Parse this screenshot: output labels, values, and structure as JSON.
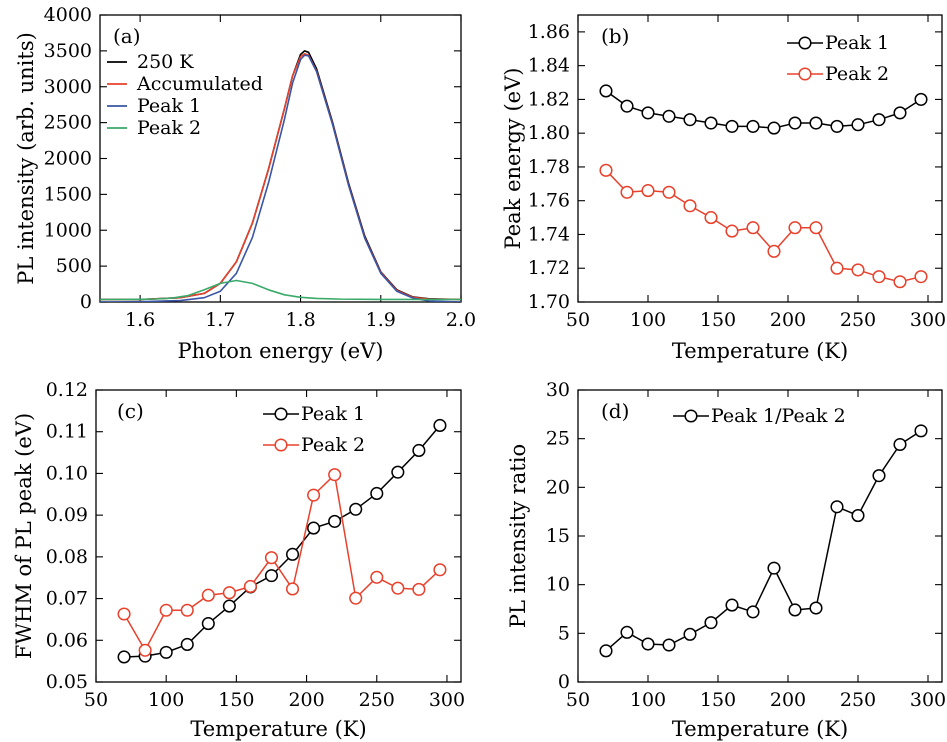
{
  "figure": {
    "description_labels": [
      "(a)",
      "(b)",
      "(c)",
      "(d)"
    ]
  },
  "colors": {
    "black": "#000000",
    "red": "#e8412c",
    "blue": "#3a55a5",
    "green": "#3aaa6a"
  },
  "chart_data": [
    {
      "id": "a",
      "type": "line",
      "panel_label": "(a)",
      "xlabel": "Photon energy (eV)",
      "ylabel": "PL intensity (arb. units)",
      "xlim": [
        1.55,
        2.0
      ],
      "ylim": [
        0,
        4000
      ],
      "xticks": [
        1.6,
        1.7,
        1.8,
        1.9,
        2.0
      ],
      "xtick_labels": [
        "1.6",
        "1.7",
        "1.8",
        "1.9",
        "2.0"
      ],
      "yticks": [
        0,
        500,
        1000,
        1500,
        2000,
        2500,
        3000,
        3500,
        4000
      ],
      "ytick_labels": [
        "0",
        "500",
        "1000",
        "1500",
        "2000",
        "2500",
        "3000",
        "3500",
        "4000"
      ],
      "legend": [
        "250 K",
        "Accumulated",
        "Peak 1",
        "Peak 2"
      ],
      "series": [
        {
          "name": "250 K",
          "color": "#000000",
          "x": [
            1.55,
            1.6,
            1.65,
            1.68,
            1.7,
            1.72,
            1.74,
            1.76,
            1.78,
            1.79,
            1.8,
            1.805,
            1.81,
            1.82,
            1.84,
            1.86,
            1.88,
            1.9,
            1.92,
            1.94,
            1.96,
            2.0
          ],
          "y": [
            35,
            35,
            60,
            120,
            260,
            560,
            1100,
            1850,
            2700,
            3150,
            3450,
            3500,
            3480,
            3250,
            2500,
            1650,
            920,
            420,
            170,
            70,
            45,
            35
          ]
        },
        {
          "name": "Accumulated",
          "color": "#e8412c",
          "x": [
            1.55,
            1.6,
            1.65,
            1.68,
            1.7,
            1.72,
            1.74,
            1.76,
            1.78,
            1.79,
            1.8,
            1.805,
            1.81,
            1.82,
            1.84,
            1.86,
            1.88,
            1.9,
            1.92,
            1.94,
            1.96,
            2.0
          ],
          "y": [
            35,
            35,
            60,
            120,
            260,
            560,
            1100,
            1850,
            2700,
            3150,
            3420,
            3460,
            3440,
            3220,
            2480,
            1630,
            900,
            410,
            160,
            65,
            40,
            35
          ]
        },
        {
          "name": "Peak 1",
          "color": "#3a55a5",
          "x": [
            1.55,
            1.6,
            1.65,
            1.68,
            1.7,
            1.72,
            1.74,
            1.76,
            1.78,
            1.79,
            1.8,
            1.805,
            1.81,
            1.82,
            1.84,
            1.86,
            1.88,
            1.9,
            1.92,
            1.94,
            1.96,
            2.0
          ],
          "y": [
            0,
            5,
            20,
            60,
            150,
            400,
            900,
            1660,
            2550,
            3050,
            3380,
            3440,
            3430,
            3210,
            2470,
            1620,
            890,
            400,
            150,
            55,
            15,
            0
          ]
        },
        {
          "name": "Peak 2",
          "color": "#3aaa6a",
          "x": [
            1.55,
            1.6,
            1.62,
            1.64,
            1.66,
            1.68,
            1.7,
            1.72,
            1.74,
            1.76,
            1.78,
            1.8,
            1.82,
            1.85,
            1.9,
            2.0
          ],
          "y": [
            35,
            37,
            42,
            55,
            90,
            170,
            260,
            300,
            260,
            170,
            100,
            65,
            50,
            40,
            36,
            35
          ]
        }
      ]
    },
    {
      "id": "b",
      "type": "line",
      "panel_label": "(b)",
      "xlabel": "Temperature (K)",
      "ylabel": "Peak energy (eV)",
      "xlim": [
        50,
        310
      ],
      "ylim": [
        1.7,
        1.87
      ],
      "xticks": [
        50,
        100,
        150,
        200,
        250,
        300
      ],
      "xtick_labels": [
        "50",
        "100",
        "150",
        "200",
        "250",
        "300"
      ],
      "yticks": [
        1.7,
        1.72,
        1.74,
        1.76,
        1.78,
        1.8,
        1.82,
        1.84,
        1.86
      ],
      "ytick_labels": [
        "1.70",
        "1.72",
        "1.74",
        "1.76",
        "1.78",
        "1.80",
        "1.82",
        "1.84",
        "1.86"
      ],
      "legend": [
        "Peak 1",
        "Peak 2"
      ],
      "x": [
        70,
        85,
        100,
        115,
        130,
        145,
        160,
        175,
        190,
        205,
        220,
        235,
        250,
        265,
        280,
        295
      ],
      "series": [
        {
          "name": "Peak 1",
          "color": "#000000",
          "values": [
            1.825,
            1.816,
            1.812,
            1.81,
            1.808,
            1.806,
            1.804,
            1.804,
            1.803,
            1.806,
            1.806,
            1.804,
            1.805,
            1.808,
            1.812,
            1.82
          ]
        },
        {
          "name": "Peak 2",
          "color": "#e8412c",
          "values": [
            1.778,
            1.765,
            1.766,
            1.765,
            1.757,
            1.75,
            1.742,
            1.744,
            1.73,
            1.744,
            1.744,
            1.72,
            1.719,
            1.715,
            1.712,
            1.715
          ]
        }
      ]
    },
    {
      "id": "c",
      "type": "line",
      "panel_label": "(c)",
      "xlabel": "Temperature (K)",
      "ylabel": "FWHM of PL peak (eV)",
      "xlim": [
        50,
        310
      ],
      "ylim": [
        0.05,
        0.12
      ],
      "xticks": [
        50,
        100,
        150,
        200,
        250,
        300
      ],
      "xtick_labels": [
        "50",
        "100",
        "150",
        "200",
        "250",
        "300"
      ],
      "yticks": [
        0.05,
        0.06,
        0.07,
        0.08,
        0.09,
        0.1,
        0.11,
        0.12
      ],
      "ytick_labels": [
        "0.05",
        "0.06",
        "0.07",
        "0.08",
        "0.09",
        "0.10",
        "0.11",
        "0.12"
      ],
      "legend": [
        "Peak 1",
        "Peak 2"
      ],
      "x": [
        70,
        85,
        100,
        115,
        130,
        145,
        160,
        175,
        190,
        205,
        220,
        235,
        250,
        265,
        280,
        295
      ],
      "series": [
        {
          "name": "Peak 1",
          "color": "#000000",
          "values": [
            0.056,
            0.0562,
            0.0571,
            0.059,
            0.064,
            0.0682,
            0.0728,
            0.0755,
            0.0806,
            0.0869,
            0.0885,
            0.0914,
            0.0952,
            0.1003,
            0.1055,
            0.1115
          ]
        },
        {
          "name": "Peak 2",
          "color": "#e8412c",
          "values": [
            0.0663,
            0.0576,
            0.0672,
            0.0672,
            0.0708,
            0.0714,
            0.0729,
            0.0798,
            0.0723,
            0.0948,
            0.0997,
            0.0701,
            0.0751,
            0.0725,
            0.0722,
            0.0769
          ]
        }
      ]
    },
    {
      "id": "d",
      "type": "line",
      "panel_label": "(d)",
      "xlabel": "Temperature (K)",
      "ylabel": "PL intensity ratio",
      "xlim": [
        50,
        310
      ],
      "ylim": [
        0,
        30
      ],
      "xticks": [
        50,
        100,
        150,
        200,
        250,
        300
      ],
      "xtick_labels": [
        "50",
        "100",
        "150",
        "200",
        "250",
        "300"
      ],
      "yticks": [
        0,
        5,
        10,
        15,
        20,
        25,
        30
      ],
      "ytick_labels": [
        "0",
        "5",
        "10",
        "15",
        "20",
        "25",
        "30"
      ],
      "legend": [
        "Peak 1/Peak 2"
      ],
      "x": [
        70,
        85,
        100,
        115,
        130,
        145,
        160,
        175,
        190,
        205,
        220,
        235,
        250,
        265,
        280,
        295
      ],
      "series": [
        {
          "name": "Peak 1/Peak 2",
          "color": "#000000",
          "values": [
            3.2,
            5.1,
            3.9,
            3.8,
            4.9,
            6.1,
            7.9,
            7.2,
            11.7,
            7.4,
            7.6,
            18.0,
            17.1,
            21.2,
            24.4,
            25.8
          ]
        }
      ]
    }
  ]
}
